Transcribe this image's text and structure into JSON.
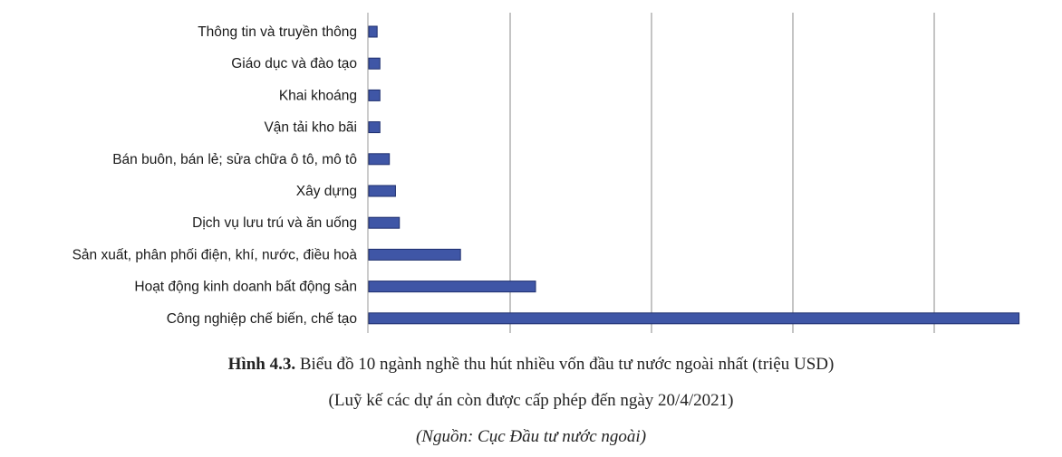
{
  "chart_data": {
    "type": "bar",
    "orientation": "horizontal",
    "categories": [
      "Thông tin và truyền thông",
      "Giáo dục và đào tạo",
      "Khai khoáng",
      "Vận tải kho bãi",
      "Bán buôn, bán lẻ; sửa chữa ô tô, mô tô",
      "Xây dựng",
      "Dịch vụ lưu trú và ăn uống",
      "Sản xuất, phân phối điện, khí, nước, điều hoà",
      "Hoạt động kinh doanh bất động sản",
      "Công nghiệp chế biến, chế tạo"
    ],
    "values": [
      1500,
      2000,
      2000,
      2000,
      3700,
      4800,
      5500,
      16500,
      30000,
      117000
    ],
    "xlim": [
      0,
      120000
    ],
    "grid": "vertical",
    "colors": {
      "bar": "#3f56a6",
      "bar_edge": "#1e2f6e",
      "grid": "#8a8a8a",
      "axis": "#9a9a9a"
    }
  },
  "caption": {
    "figure_label": "Hình 4.3.",
    "title": " Biểu đồ 10 ngành nghề thu hút nhiều vốn đầu tư nước ngoài nhất (triệu USD)",
    "subtitle": "(Luỹ kế các dự án còn được cấp phép đến ngày 20/4/2021)",
    "source": "(Nguồn: Cục Đầu tư nước ngoài)"
  }
}
